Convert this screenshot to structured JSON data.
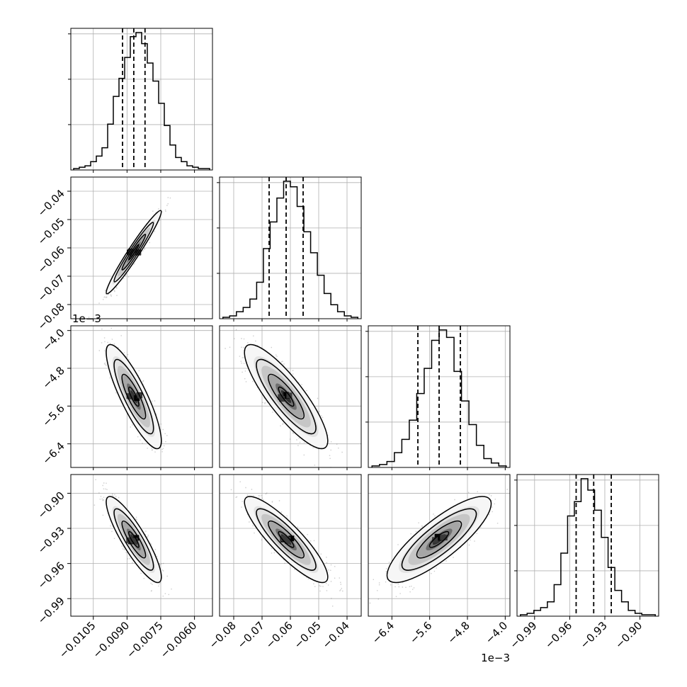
{
  "colors": {
    "ink": "#000000",
    "grid": "#b0b0b0",
    "points": "#6f6f6f",
    "background": "#ffffff"
  },
  "chart_data": {
    "type": "corner",
    "grid": true,
    "parameters": [
      {
        "range": [
          -0.0115,
          -0.0052
        ],
        "median": -0.0087,
        "quantile_16": -0.0092,
        "quantile_84": -0.0082,
        "tick_values": [
          -0.0105,
          -0.009,
          -0.0075,
          -0.006
        ],
        "tick_labels": [
          "−0.0105",
          "−0.0090",
          "−0.0075",
          "−0.0060"
        ],
        "hist_counts": [
          1,
          2,
          3,
          6,
          10,
          16,
          33,
          53,
          66,
          81,
          96,
          99,
          91,
          77,
          64,
          48,
          32,
          18,
          9,
          6,
          3,
          2,
          1,
          1
        ]
      },
      {
        "range": [
          -0.085,
          -0.035
        ],
        "median": -0.0615,
        "quantile_16": -0.0675,
        "quantile_84": -0.0555,
        "tick_values": [
          -0.08,
          -0.07,
          -0.06,
          -0.05,
          -0.04
        ],
        "tick_labels": [
          "−0.08",
          "−0.07",
          "−0.06",
          "−0.05",
          "−0.04"
        ],
        "hist_counts": [
          1,
          2,
          5,
          8,
          14,
          26,
          50,
          69,
          86,
          98,
          94,
          80,
          62,
          47,
          31,
          18,
          10,
          5,
          2,
          1
        ]
      },
      {
        "range": [
          -6.9,
          -3.9
        ],
        "median": -5.4,
        "quantile_16": -5.85,
        "quantile_84": -4.95,
        "offset_text": "1e−3",
        "tick_values": [
          -6.4,
          -5.6,
          -4.8,
          -4.0
        ],
        "tick_labels": [
          "−6.4",
          "−5.6",
          "−4.8",
          "−4.0"
        ],
        "hist_counts": [
          1,
          2,
          4,
          10,
          19,
          32,
          50,
          67,
          86,
          93,
          88,
          65,
          45,
          29,
          15,
          6,
          3,
          1
        ]
      },
      {
        "range": [
          -1.005,
          -0.884
        ],
        "median": -0.9395,
        "quantile_16": -0.9545,
        "quantile_84": -0.9245,
        "tick_values": [
          -0.99,
          -0.96,
          -0.93,
          -0.9
        ],
        "tick_labels": [
          "−0.99",
          "−0.96",
          "−0.93",
          "−0.90"
        ],
        "hist_counts": [
          1,
          2,
          4,
          6,
          10,
          22,
          44,
          70,
          80,
          96,
          88,
          74,
          55,
          34,
          18,
          10,
          4,
          2,
          1,
          1
        ]
      }
    ],
    "pairs": [
      {
        "x": 0,
        "y": 1,
        "correlation": 0.97
      },
      {
        "x": 0,
        "y": 2,
        "correlation": -0.85
      },
      {
        "x": 1,
        "y": 2,
        "correlation": -0.85
      },
      {
        "x": 0,
        "y": 3,
        "correlation": -0.87
      },
      {
        "x": 1,
        "y": 3,
        "correlation": -0.87
      },
      {
        "x": 2,
        "y": 3,
        "correlation": 0.83
      }
    ]
  }
}
